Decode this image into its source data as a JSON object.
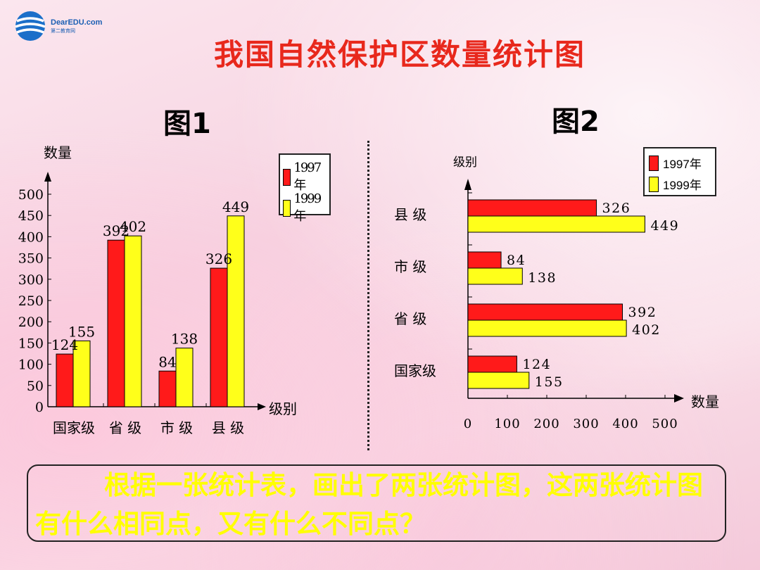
{
  "header": {
    "logo_text": "DearEDU.com",
    "logo_sub": "第二教育网",
    "title": "我国自然保护区数量统计图"
  },
  "figures": {
    "fig1_label": "图1",
    "fig2_label": "图2"
  },
  "colors": {
    "series_1997": "#ff1a1a",
    "series_1999": "#ffff1a",
    "title": "#e8281c",
    "question": "#ffff00"
  },
  "question": "根据一张统计表，画出了两张统计图，这两张统计图有什么相同点，又有什么不同点？",
  "chart_data": [
    {
      "id": "figure-1",
      "type": "bar",
      "orientation": "vertical",
      "categories": [
        "国家级",
        "省 级",
        "市 级",
        "县 级"
      ],
      "series": [
        {
          "name": "1997年",
          "color": "#ff1a1a",
          "values": [
            124,
            392,
            84,
            326
          ]
        },
        {
          "name": "1999年",
          "color": "#ffff1a",
          "values": [
            155,
            402,
            138,
            449
          ]
        }
      ],
      "xlabel": "级别",
      "ylabel": "数量",
      "ylim": [
        0,
        500
      ],
      "yticks": [
        0,
        50,
        100,
        150,
        200,
        250,
        300,
        350,
        400,
        450,
        500
      ],
      "legend": "top-right",
      "grid": false
    },
    {
      "id": "figure-2",
      "type": "bar",
      "orientation": "horizontal",
      "categories": [
        "国家级",
        "省 级",
        "市 级",
        "县 级"
      ],
      "series": [
        {
          "name": "1997年",
          "color": "#ff1a1a",
          "values": [
            124,
            392,
            84,
            326
          ]
        },
        {
          "name": "1999年",
          "color": "#ffff1a",
          "values": [
            155,
            402,
            138,
            449
          ]
        }
      ],
      "xlabel": "数量",
      "ylabel": "级别",
      "xlim": [
        0,
        500
      ],
      "xticks": [
        0,
        100,
        200,
        300,
        400,
        500
      ],
      "legend": "top-right",
      "grid": false
    }
  ]
}
